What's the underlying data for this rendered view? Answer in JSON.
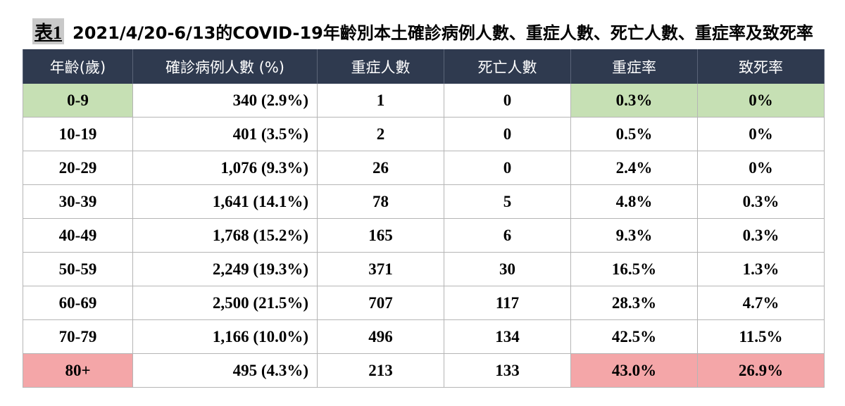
{
  "caption": {
    "tag": "表1",
    "title": "2021/4/20-6/13的COVID-19年齡別本土確診病例人數、重症人數、死亡人數、重症率及致死率"
  },
  "table": {
    "headers": [
      "年齡(歲)",
      "確診病例人數 (%)",
      "重症人數",
      "死亡人數",
      "重症率",
      "致死率"
    ],
    "rows": [
      {
        "age": "0-9",
        "cases": "340 (2.9%)",
        "severe": "1",
        "deaths": "0",
        "severe_rate": "0.3%",
        "fatality_rate": "0%",
        "highlight": "green"
      },
      {
        "age": "10-19",
        "cases": "401 (3.5%)",
        "severe": "2",
        "deaths": "0",
        "severe_rate": "0.5%",
        "fatality_rate": "0%",
        "highlight": "none"
      },
      {
        "age": "20-29",
        "cases": "1,076 (9.3%)",
        "severe": "26",
        "deaths": "0",
        "severe_rate": "2.4%",
        "fatality_rate": "0%",
        "highlight": "none"
      },
      {
        "age": "30-39",
        "cases": "1,641 (14.1%)",
        "severe": "78",
        "deaths": "5",
        "severe_rate": "4.8%",
        "fatality_rate": "0.3%",
        "highlight": "none"
      },
      {
        "age": "40-49",
        "cases": "1,768 (15.2%)",
        "severe": "165",
        "deaths": "6",
        "severe_rate": "9.3%",
        "fatality_rate": "0.3%",
        "highlight": "none"
      },
      {
        "age": "50-59",
        "cases": "2,249 (19.3%)",
        "severe": "371",
        "deaths": "30",
        "severe_rate": "16.5%",
        "fatality_rate": "1.3%",
        "highlight": "none"
      },
      {
        "age": "60-69",
        "cases": "2,500 (21.5%)",
        "severe": "707",
        "deaths": "117",
        "severe_rate": "28.3%",
        "fatality_rate": "4.7%",
        "highlight": "none"
      },
      {
        "age": "70-79",
        "cases": "1,166 (10.0%)",
        "severe": "496",
        "deaths": "134",
        "severe_rate": "42.5%",
        "fatality_rate": "11.5%",
        "highlight": "none"
      },
      {
        "age": "80+",
        "cases": "495 (4.3%)",
        "severe": "213",
        "deaths": "133",
        "severe_rate": "43.0%",
        "fatality_rate": "26.9%",
        "highlight": "red"
      }
    ]
  },
  "colors": {
    "header_bg": "#2f3a4f",
    "highlight_green": "#c6e0b4",
    "highlight_red": "#f4a6a8",
    "tag_bg": "#c9c9c9"
  }
}
